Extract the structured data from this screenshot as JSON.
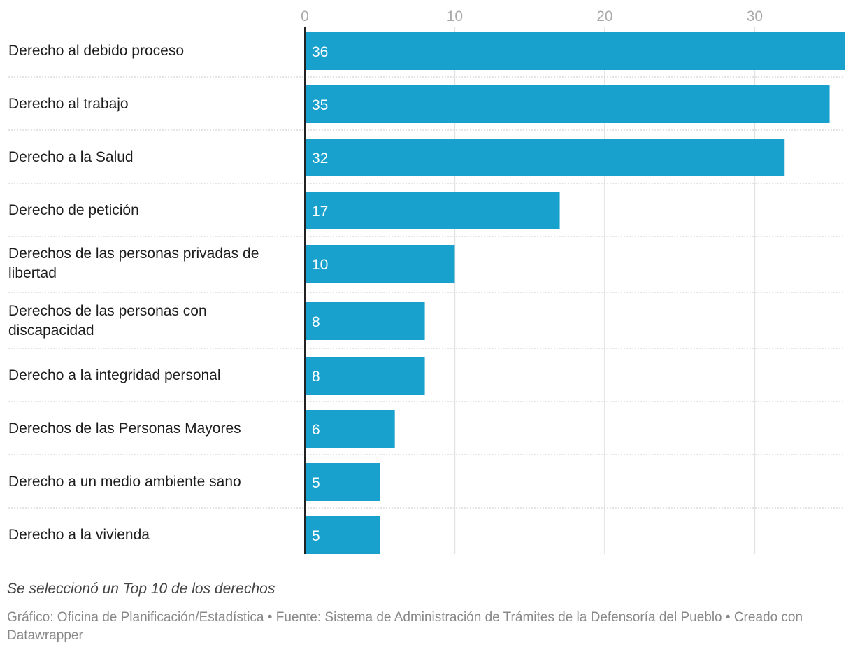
{
  "chart_data": {
    "type": "bar",
    "orientation": "horizontal",
    "categories": [
      "Derecho al debido proceso",
      "Derecho al trabajo",
      "Derecho a la Salud",
      "Derecho de petición",
      "Derechos de las personas privadas de libertad",
      "Derechos de las personas con discapacidad",
      "Derecho a la integridad personal",
      "Derechos de las Personas Mayores",
      "Derecho a un medio ambiente sano",
      "Derecho a la vivienda"
    ],
    "values": [
      36,
      35,
      32,
      17,
      10,
      8,
      8,
      6,
      5,
      5
    ],
    "xticks": [
      0,
      10,
      20,
      30
    ],
    "xlim": [
      0,
      36
    ],
    "grid": true,
    "bar_color": "#18a1cd",
    "note": "Se seleccionó un Top 10 de los derechos",
    "credits": "Gráfico: Oficina de Planificación/Estadística • Fuente: Sistema de Administración de Trámites de la Defensoría del Pueblo • Creado con Datawrapper"
  }
}
